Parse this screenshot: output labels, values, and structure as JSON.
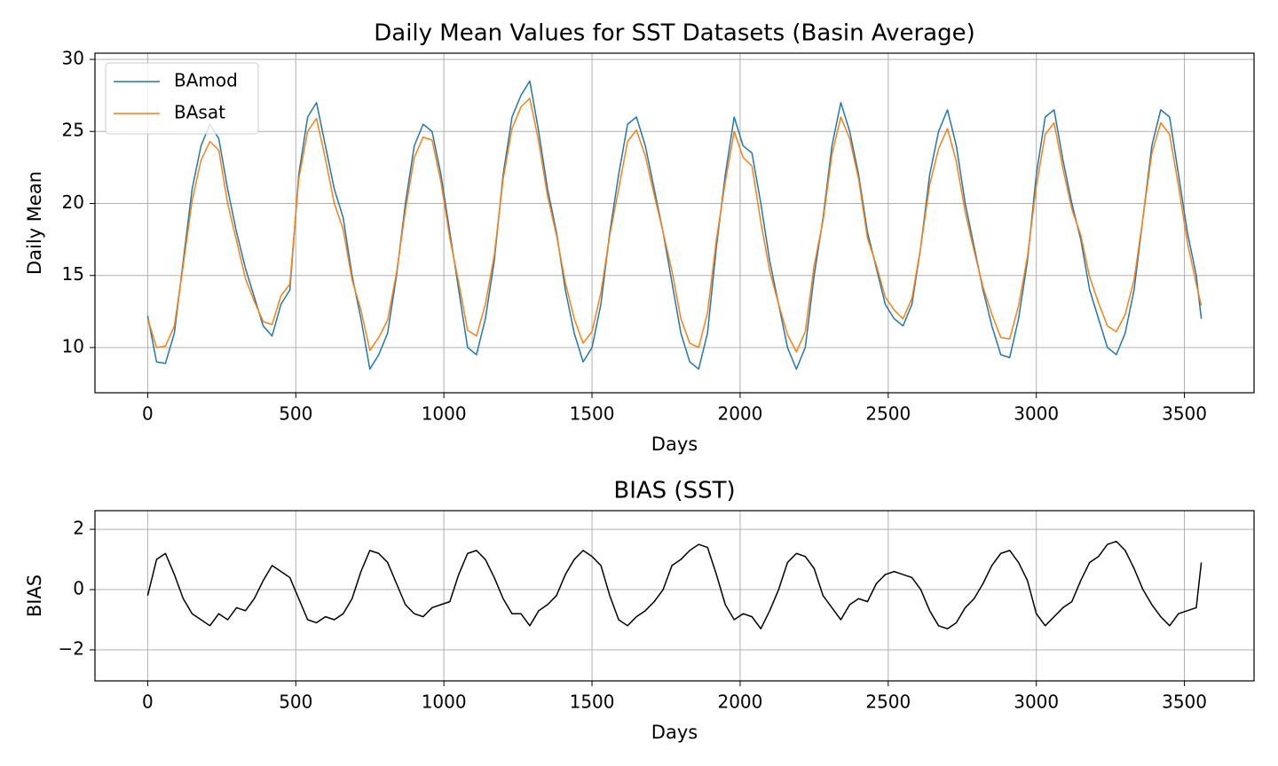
{
  "chart_data": [
    {
      "type": "line",
      "title": "Daily Mean Values for SST Datasets (Basin Average)",
      "xlabel": "Days",
      "ylabel": "Daily Mean",
      "x": [
        0,
        30,
        60,
        90,
        120,
        150,
        180,
        210,
        240,
        270,
        300,
        330,
        360,
        390,
        420,
        450,
        480,
        510,
        540,
        570,
        600,
        630,
        660,
        690,
        720,
        750,
        780,
        810,
        840,
        870,
        900,
        930,
        960,
        990,
        1020,
        1050,
        1080,
        1110,
        1140,
        1170,
        1200,
        1230,
        1260,
        1290,
        1320,
        1350,
        1380,
        1410,
        1440,
        1470,
        1500,
        1530,
        1560,
        1590,
        1620,
        1650,
        1680,
        1710,
        1740,
        1770,
        1800,
        1830,
        1860,
        1890,
        1920,
        1950,
        1980,
        2010,
        2040,
        2070,
        2100,
        2130,
        2160,
        2190,
        2220,
        2250,
        2280,
        2310,
        2340,
        2370,
        2400,
        2430,
        2460,
        2490,
        2520,
        2550,
        2580,
        2610,
        2640,
        2670,
        2700,
        2730,
        2760,
        2790,
        2820,
        2850,
        2880,
        2910,
        2940,
        2970,
        3000,
        3030,
        3060,
        3090,
        3120,
        3150,
        3180,
        3210,
        3240,
        3270,
        3300,
        3330,
        3360,
        3390,
        3420,
        3450,
        3480,
        3510,
        3540,
        3557
      ],
      "series": [
        {
          "name": "BAmod",
          "color": "#1f77b4",
          "values": [
            12.2,
            9.0,
            8.9,
            11,
            16,
            21,
            24,
            25.5,
            24.5,
            21,
            18,
            15.5,
            13.5,
            11.5,
            10.8,
            13,
            14,
            22,
            26,
            27,
            24,
            21,
            19,
            15,
            12,
            8.5,
            9.5,
            11,
            15,
            20,
            24,
            25.5,
            25,
            22,
            18,
            14,
            10,
            9.5,
            12,
            16,
            22,
            26,
            27.5,
            28.5,
            25,
            21,
            18,
            14,
            11,
            9,
            10,
            13,
            18,
            22,
            25.5,
            26,
            24,
            21,
            18,
            14.5,
            11,
            9,
            8.5,
            11,
            17,
            22,
            26,
            24,
            23.5,
            20,
            16,
            13,
            10,
            8.5,
            10,
            15,
            19,
            24,
            27,
            25,
            22,
            18,
            15.5,
            13,
            12,
            11.5,
            13,
            17,
            22,
            25,
            26.5,
            24,
            20,
            17,
            14,
            11.5,
            9.5,
            9.3,
            12,
            16,
            22,
            26,
            26.5,
            23,
            20,
            17.5,
            14,
            12,
            10,
            9.5,
            11,
            14,
            19,
            24,
            26.5,
            26,
            22,
            18,
            15,
            12
          ]
        },
        {
          "name": "BAsat",
          "color": "#ff7f0e",
          "values": [
            12.0,
            10.0,
            10.1,
            11.5,
            15.7,
            20.2,
            23.0,
            24.3,
            23.7,
            20.0,
            17.4,
            14.8,
            13.2,
            11.8,
            11.6,
            13.6,
            14.4,
            21.7,
            25.0,
            25.9,
            23.1,
            20.0,
            18.2,
            14.7,
            12.6,
            9.8,
            10.7,
            11.9,
            15.2,
            19.5,
            23.2,
            24.6,
            24.4,
            21.5,
            17.6,
            14.5,
            11.2,
            10.8,
            13.0,
            16.4,
            21.7,
            25.2,
            26.7,
            27.3,
            24.3,
            20.5,
            17.8,
            14.5,
            12.0,
            10.3,
            11.1,
            13.8,
            17.8,
            21.0,
            24.3,
            25.1,
            23.3,
            20.6,
            18.0,
            15.3,
            12.0,
            10.3,
            10.0,
            12.4,
            17.5,
            21.5,
            25.0,
            23.2,
            22.6,
            18.7,
            15.3,
            13.0,
            10.9,
            9.7,
            11.1,
            15.7,
            18.8,
            23.4,
            26.0,
            24.5,
            21.7,
            17.6,
            15.7,
            13.5,
            12.6,
            12.0,
            13.4,
            17.0,
            21.3,
            23.8,
            25.2,
            22.9,
            19.4,
            16.7,
            14.2,
            12.3,
            10.7,
            10.6,
            12.9,
            16.3,
            21.2,
            24.8,
            25.6,
            22.4,
            19.6,
            17.8,
            14.9,
            13.1,
            11.5,
            11.1,
            12.3,
            14.7,
            19.0,
            23.5,
            25.6,
            24.8,
            21.2,
            17.3,
            14.4,
            12.9
          ]
        }
      ],
      "xlim": [
        -178,
        3735
      ],
      "ylim": [
        6.86,
        30.43
      ],
      "xticks": [
        0,
        500,
        1000,
        1500,
        2000,
        2500,
        3000,
        3500
      ],
      "yticks": [
        10,
        15,
        20,
        25,
        30
      ],
      "grid": true,
      "legend": "upper left"
    },
    {
      "type": "line",
      "title": "BIAS (SST)",
      "xlabel": "Days",
      "ylabel": "BIAS",
      "x": [
        0,
        30,
        60,
        90,
        120,
        150,
        180,
        210,
        240,
        270,
        300,
        330,
        360,
        390,
        420,
        450,
        480,
        510,
        540,
        570,
        600,
        630,
        660,
        690,
        720,
        750,
        780,
        810,
        840,
        870,
        900,
        930,
        960,
        990,
        1020,
        1050,
        1080,
        1110,
        1140,
        1170,
        1200,
        1230,
        1260,
        1290,
        1320,
        1350,
        1380,
        1410,
        1440,
        1470,
        1500,
        1530,
        1560,
        1590,
        1620,
        1650,
        1680,
        1710,
        1740,
        1770,
        1800,
        1830,
        1860,
        1890,
        1920,
        1950,
        1980,
        2010,
        2040,
        2070,
        2100,
        2130,
        2160,
        2190,
        2220,
        2250,
        2280,
        2310,
        2340,
        2370,
        2400,
        2430,
        2460,
        2490,
        2520,
        2550,
        2580,
        2610,
        2640,
        2670,
        2700,
        2730,
        2760,
        2790,
        2820,
        2850,
        2880,
        2910,
        2940,
        2970,
        3000,
        3030,
        3060,
        3090,
        3120,
        3150,
        3180,
        3210,
        3240,
        3270,
        3300,
        3330,
        3360,
        3390,
        3420,
        3450,
        3480,
        3510,
        3540,
        3557
      ],
      "color": "#000000",
      "values": [
        -0.2,
        1.0,
        1.2,
        0.5,
        -0.3,
        -0.8,
        -1.0,
        -1.2,
        -0.8,
        -1.0,
        -0.6,
        -0.7,
        -0.3,
        0.3,
        0.8,
        0.6,
        0.4,
        -0.3,
        -1.0,
        -1.1,
        -0.9,
        -1.0,
        -0.8,
        -0.3,
        0.6,
        1.3,
        1.2,
        0.9,
        0.2,
        -0.5,
        -0.8,
        -0.9,
        -0.6,
        -0.5,
        -0.4,
        0.5,
        1.2,
        1.3,
        1.0,
        0.4,
        -0.3,
        -0.8,
        -0.8,
        -1.2,
        -0.7,
        -0.5,
        -0.2,
        0.5,
        1.0,
        1.3,
        1.1,
        0.8,
        -0.2,
        -1.0,
        -1.2,
        -0.9,
        -0.7,
        -0.4,
        0.0,
        0.8,
        1.0,
        1.3,
        1.5,
        1.4,
        0.5,
        -0.5,
        -1.0,
        -0.8,
        -0.9,
        -1.3,
        -0.7,
        0.0,
        0.9,
        1.2,
        1.1,
        0.7,
        -0.2,
        -0.6,
        -1.0,
        -0.5,
        -0.3,
        -0.4,
        0.2,
        0.5,
        0.6,
        0.5,
        0.4,
        0.0,
        -0.7,
        -1.2,
        -1.3,
        -1.1,
        -0.6,
        -0.3,
        0.2,
        0.8,
        1.2,
        1.3,
        0.9,
        0.3,
        -0.8,
        -1.2,
        -0.9,
        -0.6,
        -0.4,
        0.3,
        0.9,
        1.1,
        1.5,
        1.6,
        1.3,
        0.7,
        0.0,
        -0.5,
        -0.9,
        -1.2,
        -0.8,
        -0.7,
        -0.6,
        0.9
      ],
      "xlim": [
        -178,
        3735
      ],
      "ylim": [
        -3.03,
        2.62
      ],
      "xticks": [
        0,
        500,
        1000,
        1500,
        2000,
        2500,
        3000,
        3500
      ],
      "yticks": [
        {
          "value": -2,
          "label": "−2"
        },
        0,
        2
      ],
      "grid": true
    }
  ]
}
